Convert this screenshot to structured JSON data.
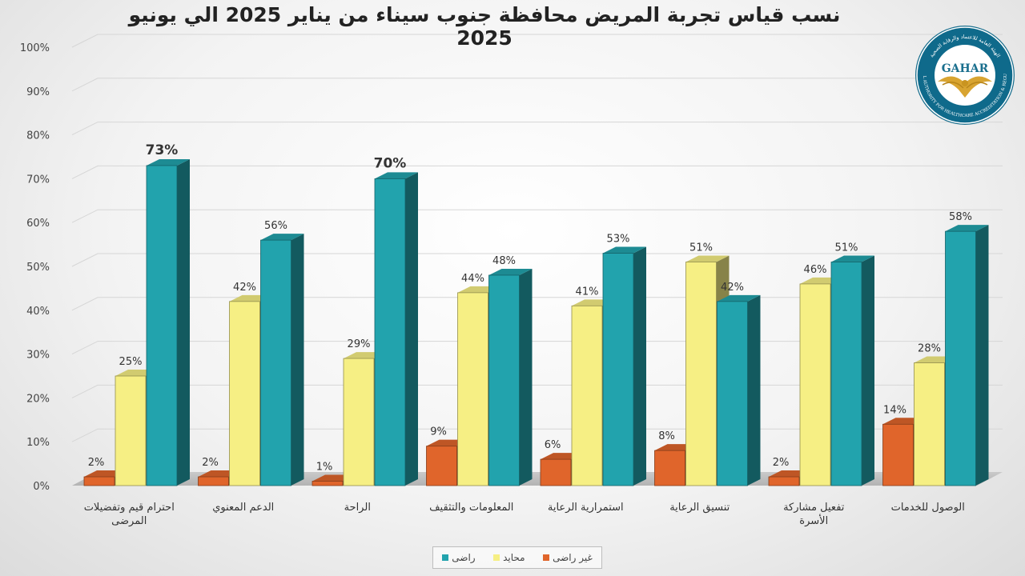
{
  "chart_data": {
    "type": "bar",
    "title": "نسب قياس تجربة المريض محافظة جنوب سيناء من يناير 2025 الي يونيو 2025",
    "categories": [
      "احترام قيم وتفضيلات المرضى",
      "الدعم المعنوي",
      "الراحة",
      "المعلومات والتثقيف",
      "استمرارية الرعاية",
      "تنسيق الرعاية",
      "تفعيل مشاركة الأسرة",
      "الوصول للخدمات"
    ],
    "series": [
      {
        "name": "غير راضى",
        "values": [
          2,
          2,
          1,
          9,
          6,
          8,
          2,
          14
        ],
        "labels": [
          "2%",
          "2%",
          "1%",
          "9%",
          "6%",
          "8%",
          "2%",
          "14%"
        ],
        "color": "#e0652b"
      },
      {
        "name": "محايد",
        "values": [
          25,
          42,
          29,
          44,
          41,
          51,
          46,
          28
        ],
        "labels": [
          "25%",
          "42%",
          "29%",
          "44%",
          "41%",
          "51%",
          "46%",
          "28%"
        ],
        "color": "#f6ef84"
      },
      {
        "name": "راضى",
        "values": [
          73,
          56,
          70,
          48,
          53,
          42,
          51,
          58
        ],
        "labels": [
          "73%",
          "56%",
          "70%",
          "48%",
          "53%",
          "42%",
          "51%",
          "58%"
        ],
        "color": "#22a3ad"
      }
    ],
    "ylim": [
      0,
      100
    ],
    "yticks": [
      "0%",
      "10%",
      "20%",
      "30%",
      "40%",
      "50%",
      "60%",
      "70%",
      "80%",
      "90%",
      "100%"
    ],
    "bold_labels": [
      "73%",
      "70%"
    ],
    "grid": true,
    "legend_position": "bottom"
  },
  "logo": {
    "text": "GAHAR",
    "ring_text": "GENERAL AUTHORITY FOR HEALTHCARE ACCREDITATION & REGULATION",
    "ring_text_ar": "الهيئة العامة للاعتماد والرقابة الصحية"
  }
}
